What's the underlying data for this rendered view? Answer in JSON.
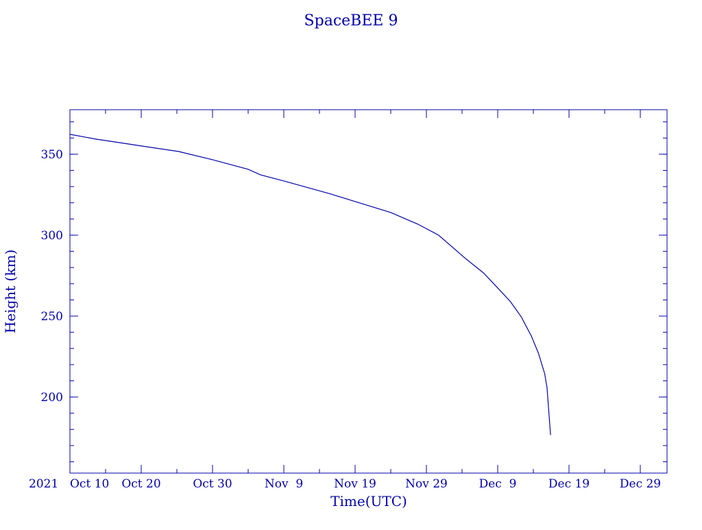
{
  "chart_data": {
    "type": "line",
    "title": "SpaceBEE 9",
    "xlabel": "Time(UTC)",
    "ylabel": "Height (km)",
    "year_label": "2021",
    "color": "#0000a8",
    "xlim": [
      "2021-10-10T00:00",
      "2022-01-01T18:00"
    ],
    "ylim": [
      153,
      377.5
    ],
    "x_ticks": [
      {
        "date": "2021-10-10",
        "label": "Oct 10"
      },
      {
        "date": "2021-10-20",
        "label": "Oct 20"
      },
      {
        "date": "2021-10-30",
        "label": "Oct 30"
      },
      {
        "date": "2021-11-09",
        "label": "Nov  9"
      },
      {
        "date": "2021-11-19",
        "label": "Nov 19"
      },
      {
        "date": "2021-11-29",
        "label": "Nov 29"
      },
      {
        "date": "2021-12-09",
        "label": "Dec  9"
      },
      {
        "date": "2021-12-19",
        "label": "Dec 19"
      },
      {
        "date": "2021-12-29",
        "label": "Dec 29"
      }
    ],
    "x_minor_days": 5,
    "y_ticks": [
      200,
      250,
      300,
      350
    ],
    "y_minor": 10,
    "grid": false,
    "series": [
      {
        "x": [
          "2021-10-10T00:00",
          "2021-10-13T17:00",
          "2021-10-17T12:00",
          "2021-10-20T00:00",
          "2021-10-25T05:00",
          "2021-10-30T00:00",
          "2021-11-04T00:00",
          "2021-11-05T17:00",
          "2021-11-09T00:00",
          "2021-11-15T07:00",
          "2021-11-19T00:00",
          "2021-11-24T00:00",
          "2021-11-27T19:00",
          "2021-11-30T17:00",
          "2021-12-04T14:00",
          "2021-12-07T00:00",
          "2021-12-09T00:00",
          "2021-12-10T19:00",
          "2021-12-12T07:00",
          "2021-12-13T17:00",
          "2021-12-14T17:00",
          "2021-12-15T14:00",
          "2021-12-15T22:00",
          "2021-12-16T10:00"
        ],
        "y": [
          362.3,
          359.3,
          356.8,
          355.1,
          351.7,
          346.6,
          340.7,
          337.3,
          333.5,
          325.8,
          320.8,
          314.0,
          306.8,
          300.0,
          285.2,
          276.7,
          267.4,
          258.9,
          249.6,
          237.7,
          227.1,
          214.4,
          205.9,
          176.5
        ]
      }
    ]
  }
}
